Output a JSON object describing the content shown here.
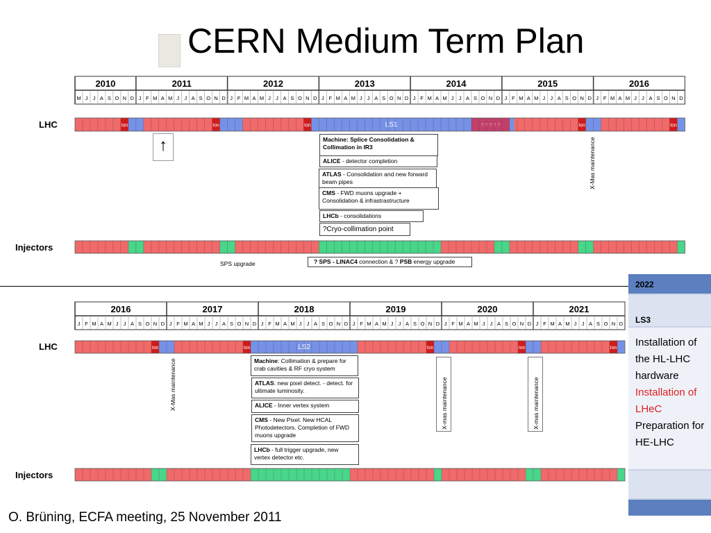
{
  "title": "CERN Medium Term Plan",
  "footer": "O. Brüning, ECFA meeting, 25 November 2011",
  "colors": {
    "beam": "#ef6a6a",
    "shutdown": "#7592e6",
    "injector_stop": "#48d68a",
    "ion": "#d01c1c",
    "ls1_beam": "#c0406a"
  },
  "top": {
    "years": [
      "2010",
      "2011",
      "2012",
      "2013",
      "2014",
      "2015",
      "2016"
    ],
    "months_first": [
      "M",
      "J",
      "J",
      "A",
      "S",
      "O",
      "N",
      "D"
    ],
    "months_full": [
      "J",
      "F",
      "M",
      "A",
      "M",
      "J",
      "J",
      "A",
      "S",
      "O",
      "N",
      "D"
    ],
    "lhc_label": "LHC",
    "injectors_label": "Injectors",
    "ion_label": "Ion",
    "ls_label": "LS1",
    "question_marks": "? ? ? ? ?",
    "arrow": "↑",
    "xmas": "X-Mas maintenance",
    "sps_upgrade": "SPS upgrade",
    "boxes": {
      "machine": {
        "title": "Machine: Splice Consolidation & Collimation in IR3"
      },
      "alice": {
        "bold": "ALICE",
        "text": " - detector completion"
      },
      "atlas": {
        "bold": "ATLAS",
        "text": " - Consolidation and new forward beam pipes"
      },
      "cms": {
        "bold": "CMS",
        "text": " - FWD muons upgrade + Consolidation  & infrastrastructure"
      },
      "lhcb": {
        "bold": "LHCb",
        "text": " - consolidations"
      },
      "cryo": "?Cryo-collimation point"
    },
    "inj_note": {
      "p1": "? SPS - LINAC4",
      "p2": " connection & ? ",
      "p3": "PSB",
      "p4": " energy upgrade"
    }
  },
  "bottom": {
    "years": [
      "2016",
      "2017",
      "2018",
      "2019",
      "2020",
      "2021"
    ],
    "months_full": [
      "J",
      "F",
      "M",
      "A",
      "M",
      "J",
      "J",
      "A",
      "S",
      "O",
      "N",
      "D"
    ],
    "lhc_label": "LHC",
    "injectors_label": "Injectors",
    "ion_label": "Ion",
    "ls_label": "LS2",
    "xmas1": "X-Mas maintenance",
    "xmas2": "X-mas maintenance",
    "xmas3": "X-mas maintenance",
    "boxes": {
      "machine": {
        "bold": "Machine",
        "text": ": Collimation & prepare for crab cavities & RF cryo system"
      },
      "atlas": {
        "bold": "ATLAS",
        "text": ": new pixel detect.  - detect. for ultimate luminosity."
      },
      "alice": {
        "bold": "ALICE",
        "text": " - Inner vertex system"
      },
      "cms": {
        "bold": "CMS",
        "text": " - New Pixel. New HCAL Photodetectors. Completion of FWD muons upgrade"
      },
      "lhcb": {
        "bold": "LHCb",
        "text": " - full trigger upgrade, new vertex detector etc."
      }
    }
  },
  "side": {
    "year": "2022",
    "ls": "LS3",
    "line1": "Installation of the HL-LHC hardware",
    "line2": "Installation of LHeC",
    "line3": "Preparation for HE-LHC"
  }
}
